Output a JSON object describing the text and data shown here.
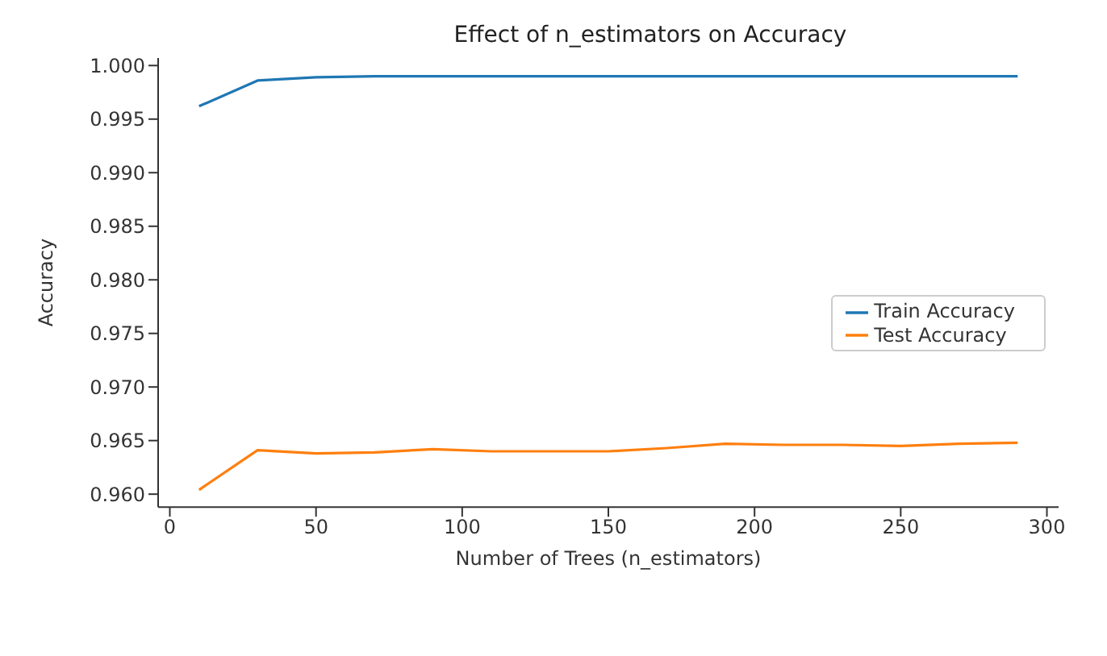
{
  "chart_data": {
    "type": "line",
    "title": "Effect of n_estimators on Accuracy",
    "xlabel": "Number of Trees (n_estimators)",
    "ylabel": "Accuracy",
    "x": [
      10,
      30,
      50,
      70,
      90,
      110,
      130,
      150,
      170,
      190,
      210,
      230,
      250,
      270,
      290
    ],
    "series": [
      {
        "name": "Train Accuracy",
        "color": "#1f77b4",
        "values": [
          0.9962,
          0.9986,
          0.9989,
          0.999,
          0.999,
          0.999,
          0.999,
          0.999,
          0.999,
          0.999,
          0.999,
          0.999,
          0.999,
          0.999,
          0.999
        ]
      },
      {
        "name": "Test Accuracy",
        "color": "#ff7f0e",
        "values": [
          0.9604,
          0.9641,
          0.9638,
          0.9639,
          0.9642,
          0.964,
          0.964,
          0.964,
          0.9643,
          0.9647,
          0.9646,
          0.9646,
          0.9645,
          0.9647,
          0.9648
        ]
      }
    ],
    "xlim": [
      -4,
      304
    ],
    "xticks": [
      0,
      50,
      100,
      150,
      200,
      250,
      300
    ],
    "ylim": [
      0.9588,
      1.0007
    ],
    "yticks": [
      {
        "value": 0.96,
        "label": "0.960"
      },
      {
        "value": 0.965,
        "label": "0.965"
      },
      {
        "value": 0.97,
        "label": "0.970"
      },
      {
        "value": 0.975,
        "label": "0.975"
      },
      {
        "value": 0.98,
        "label": "0.980"
      },
      {
        "value": 0.985,
        "label": "0.985"
      },
      {
        "value": 0.99,
        "label": "0.990"
      },
      {
        "value": 0.995,
        "label": "0.995"
      },
      {
        "value": 1.0,
        "label": "1.000"
      }
    ],
    "grid": false,
    "legend": "right",
    "marker": "none",
    "line_style": "solid"
  }
}
